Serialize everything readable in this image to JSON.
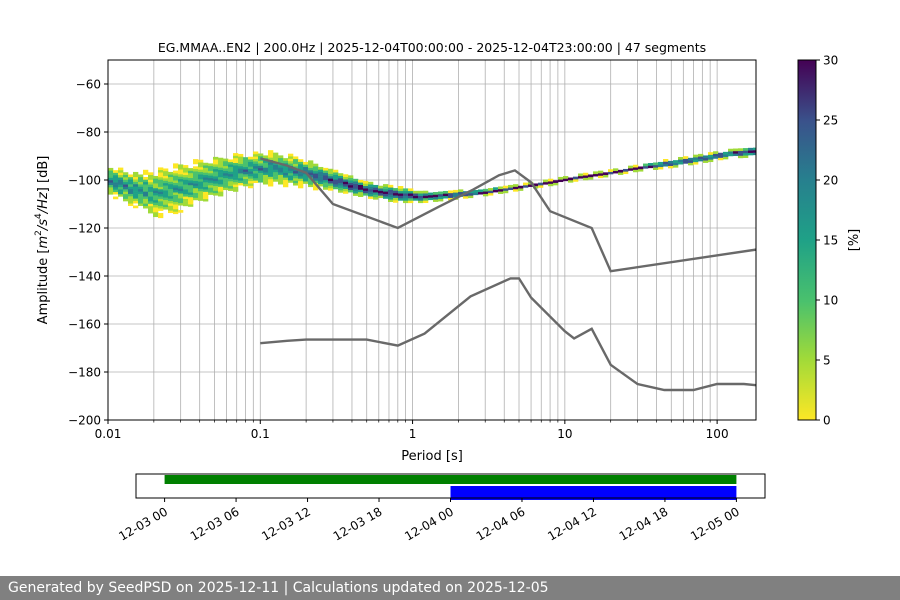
{
  "chart_data": [
    {
      "type": "heatmap",
      "title": "EG.MMAA..EN2 | 200.0Hz | 2025-12-04T00:00:00 - 2025-12-04T23:00:00 | 47 segments",
      "xlabel": "Period [s]",
      "ylabel_parts": [
        "Amplitude [",
        "m",
        "2",
        "/",
        "s",
        "4",
        "/",
        "Hz",
        "] [dB]"
      ],
      "x_scale": "log",
      "xlim": [
        0.01,
        180
      ],
      "ylim": [
        -200,
        -50
      ],
      "xticks": [
        0.01,
        0.1,
        1,
        10,
        100
      ],
      "xtick_labels": [
        "0.01",
        "0.1",
        "1",
        "10",
        "100"
      ],
      "yticks": [
        -200,
        -180,
        -160,
        -140,
        -120,
        -100,
        -80,
        -60
      ],
      "ytick_labels": [
        "−200",
        "−180",
        "−160",
        "−140",
        "−120",
        "−100",
        "−80",
        "−60"
      ],
      "grid": "vertical lines at log-decade subdivisions, horizontal at y ticks",
      "colorbar": {
        "label": "[%]",
        "range": [
          0,
          30
        ],
        "ticks": [
          0,
          5,
          10,
          15,
          20,
          25,
          30
        ],
        "colormap": "viridis_r"
      },
      "density_ridge": {
        "x": [
          0.01,
          0.015,
          0.02,
          0.03,
          0.05,
          0.08,
          0.12,
          0.2,
          0.3,
          0.5,
          0.8,
          1.2,
          2,
          3,
          5,
          8,
          12,
          20,
          30,
          50,
          80,
          120,
          180
        ],
        "y": [
          -100,
          -104,
          -106,
          -103,
          -99,
          -96,
          -95,
          -97,
          -100,
          -104,
          -106,
          -107,
          -106,
          -105,
          -103,
          -101,
          -99,
          -97,
          -95,
          -93,
          -91,
          -89,
          -88
        ],
        "spread": [
          5,
          6,
          8,
          8,
          7,
          6,
          6,
          5,
          4,
          3,
          3,
          2,
          1.5,
          1.2,
          1,
          1,
          1,
          1,
          1,
          1.5,
          1.5,
          1.5,
          2
        ]
      },
      "series": [
        {
          "x": [
            0.1,
            0.15,
            0.2,
            0.3,
            0.8,
            1.5,
            2.5,
            3.7,
            4.7,
            6,
            8,
            15,
            20,
            180
          ],
          "y": [
            -91,
            -94,
            -97,
            -110,
            -120,
            -111,
            -104,
            -98,
            -96,
            -101,
            -113,
            -120,
            -138,
            -129
          ]
        },
        {
          "x": [
            0.1,
            0.15,
            0.2,
            0.3,
            0.5,
            0.8,
            1.2,
            2.4,
            4.4,
            5,
            6,
            10,
            11.5,
            15,
            20,
            30,
            45,
            70,
            100,
            150,
            180
          ],
          "y": [
            -168,
            -167,
            -166.5,
            -166.5,
            -166.5,
            -169,
            -164,
            -148.5,
            -141,
            -141,
            -149,
            -163,
            -166,
            -162,
            -177,
            -185,
            -187.5,
            -187.5,
            -185,
            -185,
            -185.5
          ]
        }
      ]
    },
    {
      "type": "timeline",
      "tick_labels": [
        "12-03 00",
        "12-03 06",
        "12-03 12",
        "12-03 18",
        "12-04 00",
        "12-04 06",
        "12-04 12",
        "12-04 18",
        "12-05 00"
      ],
      "xlim_hours": [
        -2.4,
        50.4
      ],
      "bars": [
        {
          "color": "#008000",
          "start_hour": 0,
          "end_hour": 48,
          "row": "top"
        },
        {
          "color": "#0000ff",
          "start_hour": 24,
          "end_hour": 48,
          "row": "bottom"
        }
      ]
    }
  ],
  "footer": "Generated by SeedPSD on 2025-12-11 | Calculations updated on 2025-12-05"
}
